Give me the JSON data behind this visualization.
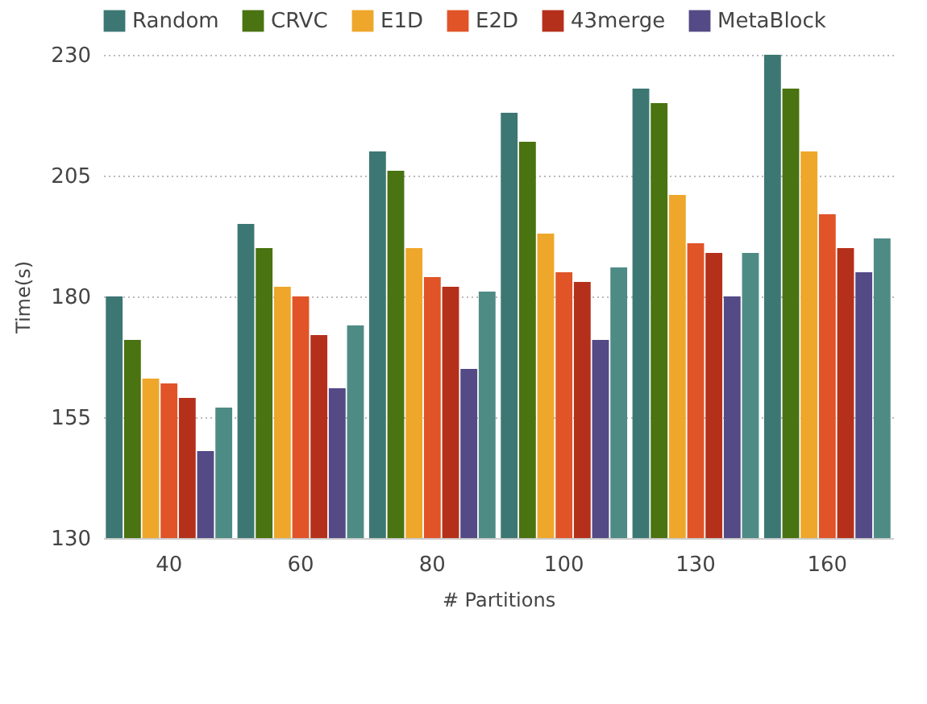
{
  "chart_data": {
    "type": "bar",
    "xlabel": "# Partitions",
    "ylabel": "Time(s)",
    "categories": [
      "40",
      "60",
      "80",
      "100",
      "130",
      "160"
    ],
    "series": [
      {
        "name": "Random",
        "color": "#3d7773",
        "values": [
          180,
          195,
          210,
          218,
          223,
          230
        ]
      },
      {
        "name": "CRVC",
        "color": "#4a7311",
        "values": [
          171,
          190,
          206,
          212,
          220,
          223
        ]
      },
      {
        "name": "E1D",
        "color": "#eea72b",
        "values": [
          163,
          182,
          190,
          193,
          201,
          210
        ]
      },
      {
        "name": "E2D",
        "color": "#e05428",
        "values": [
          162,
          180,
          184,
          185,
          191,
          197
        ]
      },
      {
        "name": "43merge",
        "color": "#b5301b",
        "values": [
          159,
          172,
          182,
          183,
          189,
          190
        ]
      },
      {
        "name": "MetaBlock",
        "color": "#534a86",
        "values": [
          148,
          161,
          165,
          171,
          180,
          185
        ]
      },
      {
        "color": "#4f8b85",
        "values": [
          157,
          174,
          181,
          186,
          189,
          192
        ]
      }
    ],
    "ylim": [
      130,
      230
    ],
    "yticks": [
      130,
      155,
      180,
      205,
      230
    ],
    "grid": "y",
    "legend": "top left"
  }
}
